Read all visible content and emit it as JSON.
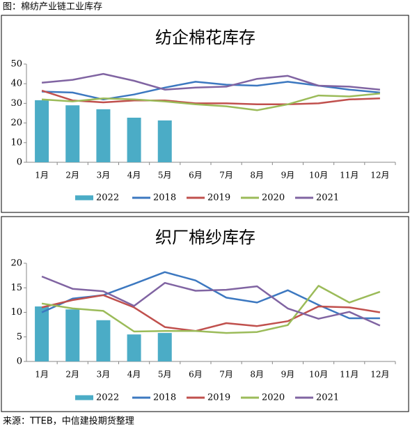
{
  "header": "图：棉纺产业链工业库存",
  "source": "来源：TTEB，中信建投期货整理",
  "chart_data": [
    {
      "type": "combo",
      "title": "纺企棉花库存",
      "categories": [
        "1月",
        "2月",
        "3月",
        "4月",
        "5月",
        "6月",
        "7月",
        "8月",
        "9月",
        "10月",
        "11月",
        "12月"
      ],
      "ylim": [
        0,
        50
      ],
      "yticks": [
        0,
        10,
        20,
        30,
        40,
        50
      ],
      "grid": false,
      "series": [
        {
          "name": "2022",
          "kind": "bar",
          "color": "#4bacc6",
          "values": [
            31.6,
            29,
            27,
            22.7,
            21.3,
            null,
            null,
            null,
            null,
            null,
            null,
            null
          ]
        },
        {
          "name": "2018",
          "kind": "line",
          "color": "#3c78c0",
          "values": [
            36,
            35.5,
            32,
            34.5,
            38,
            41,
            39.5,
            39,
            41,
            39,
            37,
            35.5
          ]
        },
        {
          "name": "2019",
          "kind": "line",
          "color": "#c0504d",
          "values": [
            36.5,
            31.5,
            30.5,
            31.5,
            31.5,
            30,
            30,
            29.5,
            29.5,
            30,
            32,
            32.5
          ]
        },
        {
          "name": "2020",
          "kind": "line",
          "color": "#9bbb59",
          "values": [
            32,
            31,
            32.5,
            32,
            31,
            29.5,
            28.5,
            26.5,
            29.5,
            34,
            33.5,
            35
          ]
        },
        {
          "name": "2021",
          "kind": "line",
          "color": "#8064a2",
          "values": [
            40.5,
            42,
            45,
            41.5,
            37,
            38,
            38.5,
            42.5,
            44,
            39,
            38.5,
            37
          ]
        }
      ]
    },
    {
      "type": "combo",
      "title": "织厂棉纱库存",
      "categories": [
        "1月",
        "2月",
        "3月",
        "4月",
        "5月",
        "6月",
        "7月",
        "8月",
        "9月",
        "10月",
        "11月",
        "12月"
      ],
      "ylim": [
        0,
        20
      ],
      "yticks": [
        0,
        5,
        10,
        15,
        20
      ],
      "grid": false,
      "series": [
        {
          "name": "2022",
          "kind": "bar",
          "color": "#4bacc6",
          "values": [
            11.2,
            10.6,
            8.4,
            5.5,
            5.8,
            null,
            null,
            null,
            null,
            null,
            null,
            null
          ]
        },
        {
          "name": "2018",
          "kind": "line",
          "color": "#3c78c0",
          "values": [
            10,
            12.8,
            13.5,
            15.8,
            18.2,
            16.5,
            13,
            12,
            14.5,
            11.5,
            8.8,
            8.8
          ]
        },
        {
          "name": "2019",
          "kind": "line",
          "color": "#c0504d",
          "values": [
            11,
            12.5,
            13.5,
            11,
            7,
            6.2,
            7.8,
            7.2,
            8.2,
            11.2,
            11,
            10
          ]
        },
        {
          "name": "2020",
          "kind": "line",
          "color": "#9bbb59",
          "values": [
            11.8,
            10.8,
            10.3,
            6.1,
            6.2,
            6.2,
            5.8,
            6,
            7.4,
            15.4,
            12,
            14.2
          ]
        },
        {
          "name": "2021",
          "kind": "line",
          "color": "#8064a2",
          "values": [
            17.3,
            14.8,
            14.3,
            11.3,
            16,
            14.4,
            14.6,
            15.3,
            10.8,
            8.7,
            10.1,
            7.3
          ]
        }
      ]
    }
  ]
}
